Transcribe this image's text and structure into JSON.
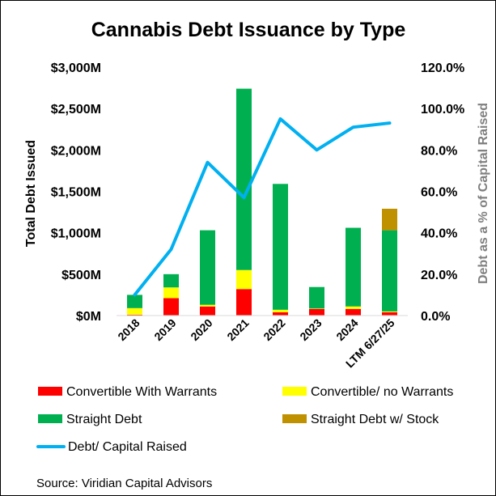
{
  "chart_data": {
    "type": "bar",
    "title": "Cannabis Debt Issuance by Type",
    "ylabel": "Total Debt Issued",
    "y2label": "Debt as a % of Capital Raised",
    "source": "Source: Viridian Capital Advisors",
    "categories": [
      "2018",
      "2019",
      "2020",
      "2021",
      "2022",
      "2023",
      "2024",
      "LTM 6/27/25"
    ],
    "ylim": [
      0,
      3000
    ],
    "y_ticks": [
      "$0M",
      "$500M",
      "$1,000M",
      "$1,500M",
      "$2,000M",
      "$2,500M",
      "$3,000M"
    ],
    "y2lim": [
      0,
      120
    ],
    "y2_ticks": [
      "0.0%",
      "20.0%",
      "40.0%",
      "60.0%",
      "80.0%",
      "100.0%",
      "120.0%"
    ],
    "grid": false,
    "legend_position": "bottom",
    "series": [
      {
        "name": "Convertible With Warrants",
        "type": "bar",
        "color": "#ff0000",
        "values": [
          10,
          210,
          110,
          320,
          40,
          80,
          80,
          40
        ]
      },
      {
        "name": "Convertible/ no Warrants",
        "type": "bar",
        "color": "#ffff00",
        "values": [
          80,
          130,
          20,
          230,
          30,
          5,
          30,
          10
        ]
      },
      {
        "name": "Straight Debt",
        "type": "bar",
        "color": "#00b050",
        "values": [
          160,
          160,
          900,
          2190,
          1520,
          260,
          950,
          980
        ]
      },
      {
        "name": "Straight Debt w/ Stock",
        "type": "bar",
        "color": "#bf9000",
        "values": [
          0,
          0,
          0,
          0,
          0,
          0,
          0,
          260
        ]
      },
      {
        "name": "Debt/ Capital Raised",
        "type": "line",
        "axis": "y2",
        "color": "#00b0f0",
        "values": [
          10,
          32,
          74,
          57,
          95,
          80,
          91,
          93
        ]
      }
    ]
  }
}
